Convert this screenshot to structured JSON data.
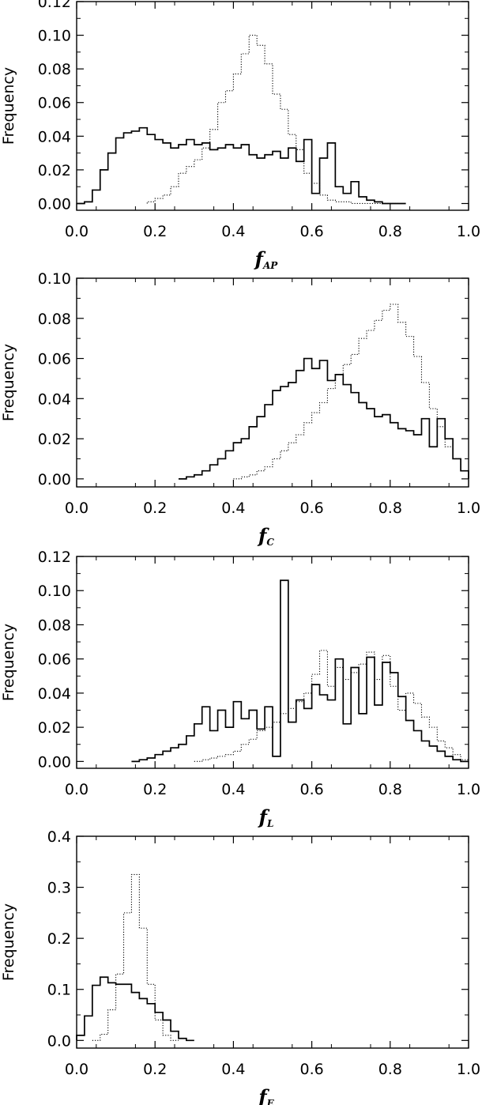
{
  "chart_data": [
    {
      "type": "histogram",
      "xlabel": "f",
      "xlabel_sub": "AP",
      "ylabel": "Frequency",
      "xlim": [
        0.0,
        1.0
      ],
      "ylim": [
        -0.004,
        0.12
      ],
      "xticks": [
        "0.0",
        "0.2",
        "0.4",
        "0.6",
        "0.8",
        "1.0"
      ],
      "yticks": [
        "0.00",
        "0.02",
        "0.04",
        "0.06",
        "0.08",
        "0.10",
        "0.12"
      ],
      "bin_width": 0.02,
      "series": [
        {
          "style": "solid",
          "bins_start": [
            0.0,
            0.02,
            0.04,
            0.06,
            0.08,
            0.1,
            0.12,
            0.14,
            0.16,
            0.18,
            0.2,
            0.22,
            0.24,
            0.26,
            0.28,
            0.3,
            0.32,
            0.34,
            0.36,
            0.38,
            0.4,
            0.42,
            0.44,
            0.46,
            0.48,
            0.5,
            0.52,
            0.54,
            0.56,
            0.58,
            0.6,
            0.62,
            0.64,
            0.66,
            0.68,
            0.7,
            0.72,
            0.74,
            0.76,
            0.78,
            0.8,
            0.82
          ],
          "values": [
            0.0,
            0.001,
            0.008,
            0.02,
            0.03,
            0.039,
            0.042,
            0.043,
            0.045,
            0.041,
            0.038,
            0.036,
            0.033,
            0.035,
            0.038,
            0.035,
            0.036,
            0.032,
            0.033,
            0.035,
            0.033,
            0.035,
            0.029,
            0.027,
            0.029,
            0.031,
            0.027,
            0.033,
            0.025,
            0.038,
            0.006,
            0.027,
            0.036,
            0.01,
            0.006,
            0.013,
            0.004,
            0.002,
            0.001,
            0.0,
            0.0,
            0.0
          ]
        },
        {
          "style": "dotted",
          "bins_start": [
            0.18,
            0.2,
            0.22,
            0.24,
            0.26,
            0.28,
            0.3,
            0.32,
            0.34,
            0.36,
            0.38,
            0.4,
            0.42,
            0.44,
            0.46,
            0.48,
            0.5,
            0.52,
            0.54,
            0.56,
            0.58,
            0.6,
            0.62,
            0.64,
            0.66,
            0.68,
            0.7,
            0.72,
            0.74,
            0.76,
            0.78,
            0.8
          ],
          "values": [
            0.001,
            0.003,
            0.005,
            0.01,
            0.018,
            0.022,
            0.026,
            0.033,
            0.044,
            0.06,
            0.067,
            0.077,
            0.089,
            0.1,
            0.094,
            0.083,
            0.065,
            0.056,
            0.041,
            0.032,
            0.018,
            0.012,
            0.005,
            0.002,
            0.001,
            0.001,
            0.0,
            0.0,
            0.0,
            0.0,
            0.0,
            0.0
          ]
        }
      ]
    },
    {
      "type": "histogram",
      "xlabel": "f",
      "xlabel_sub": "C",
      "ylabel": "Frequency",
      "xlim": [
        0.0,
        1.0
      ],
      "ylim": [
        -0.004,
        0.1
      ],
      "xticks": [
        "0.0",
        "0.2",
        "0.4",
        "0.6",
        "0.8",
        "1.0"
      ],
      "yticks": [
        "0.00",
        "0.02",
        "0.04",
        "0.06",
        "0.08",
        "0.10"
      ],
      "bin_width": 0.02,
      "series": [
        {
          "style": "solid",
          "bins_start": [
            0.26,
            0.28,
            0.3,
            0.32,
            0.34,
            0.36,
            0.38,
            0.4,
            0.42,
            0.44,
            0.46,
            0.48,
            0.5,
            0.52,
            0.54,
            0.56,
            0.58,
            0.6,
            0.62,
            0.64,
            0.66,
            0.68,
            0.7,
            0.72,
            0.74,
            0.76,
            0.78,
            0.8,
            0.82,
            0.84,
            0.86,
            0.88,
            0.9,
            0.92,
            0.94,
            0.96,
            0.98
          ],
          "values": [
            0.0,
            0.001,
            0.002,
            0.004,
            0.007,
            0.01,
            0.014,
            0.018,
            0.02,
            0.026,
            0.031,
            0.037,
            0.044,
            0.046,
            0.048,
            0.054,
            0.06,
            0.055,
            0.059,
            0.049,
            0.052,
            0.047,
            0.043,
            0.038,
            0.035,
            0.031,
            0.032,
            0.028,
            0.025,
            0.024,
            0.022,
            0.03,
            0.016,
            0.03,
            0.02,
            0.01,
            0.004
          ]
        },
        {
          "style": "dotted",
          "bins_start": [
            0.4,
            0.42,
            0.44,
            0.46,
            0.48,
            0.5,
            0.52,
            0.54,
            0.56,
            0.58,
            0.6,
            0.62,
            0.64,
            0.66,
            0.68,
            0.7,
            0.72,
            0.74,
            0.76,
            0.78,
            0.8,
            0.82,
            0.84,
            0.86,
            0.88,
            0.9,
            0.92,
            0.94,
            0.96,
            0.98
          ],
          "values": [
            0.0,
            0.001,
            0.002,
            0.004,
            0.006,
            0.01,
            0.014,
            0.018,
            0.022,
            0.028,
            0.033,
            0.038,
            0.045,
            0.052,
            0.057,
            0.062,
            0.07,
            0.074,
            0.079,
            0.084,
            0.087,
            0.078,
            0.071,
            0.061,
            0.048,
            0.035,
            0.026,
            0.016,
            0.01,
            0.004
          ]
        }
      ]
    },
    {
      "type": "histogram",
      "xlabel": "f",
      "xlabel_sub": "L",
      "ylabel": "Frequency",
      "xlim": [
        0.0,
        1.0
      ],
      "ylim": [
        -0.004,
        0.12
      ],
      "xticks": [
        "0.0",
        "0.2",
        "0.4",
        "0.6",
        "0.8",
        "1.0"
      ],
      "yticks": [
        "0.00",
        "0.02",
        "0.04",
        "0.06",
        "0.08",
        "0.10",
        "0.12"
      ],
      "bin_width": 0.02,
      "series": [
        {
          "style": "solid",
          "bins_start": [
            0.14,
            0.16,
            0.18,
            0.2,
            0.22,
            0.24,
            0.26,
            0.28,
            0.3,
            0.32,
            0.34,
            0.36,
            0.38,
            0.4,
            0.42,
            0.44,
            0.46,
            0.48,
            0.5,
            0.52,
            0.54,
            0.56,
            0.58,
            0.6,
            0.62,
            0.64,
            0.66,
            0.68,
            0.7,
            0.72,
            0.74,
            0.76,
            0.78,
            0.8,
            0.82,
            0.84,
            0.86,
            0.88,
            0.9,
            0.92,
            0.94,
            0.96,
            0.98
          ],
          "values": [
            0.0,
            0.001,
            0.002,
            0.004,
            0.006,
            0.008,
            0.01,
            0.015,
            0.022,
            0.032,
            0.018,
            0.03,
            0.02,
            0.035,
            0.025,
            0.03,
            0.019,
            0.032,
            0.003,
            0.106,
            0.023,
            0.036,
            0.031,
            0.045,
            0.039,
            0.036,
            0.06,
            0.022,
            0.055,
            0.028,
            0.061,
            0.033,
            0.058,
            0.052,
            0.038,
            0.024,
            0.018,
            0.012,
            0.009,
            0.006,
            0.003,
            0.001,
            0.0
          ]
        },
        {
          "style": "dotted",
          "bins_start": [
            0.3,
            0.32,
            0.34,
            0.36,
            0.38,
            0.4,
            0.42,
            0.44,
            0.46,
            0.48,
            0.5,
            0.52,
            0.54,
            0.56,
            0.58,
            0.6,
            0.62,
            0.64,
            0.66,
            0.68,
            0.7,
            0.72,
            0.74,
            0.76,
            0.78,
            0.8,
            0.82,
            0.84,
            0.86,
            0.88,
            0.9,
            0.92,
            0.94,
            0.96,
            0.98
          ],
          "values": [
            0.0,
            0.001,
            0.002,
            0.003,
            0.004,
            0.006,
            0.01,
            0.013,
            0.018,
            0.02,
            0.023,
            0.028,
            0.031,
            0.035,
            0.04,
            0.051,
            0.065,
            0.044,
            0.055,
            0.048,
            0.052,
            0.057,
            0.064,
            0.048,
            0.062,
            0.044,
            0.03,
            0.04,
            0.034,
            0.026,
            0.02,
            0.012,
            0.008,
            0.004,
            0.001
          ]
        }
      ]
    },
    {
      "type": "histogram",
      "xlabel": "f",
      "xlabel_sub": "E",
      "ylabel": "Frequency",
      "xlim": [
        0.0,
        1.0
      ],
      "ylim": [
        -0.015,
        0.4
      ],
      "xticks": [
        "0.0",
        "0.2",
        "0.4",
        "0.6",
        "0.8",
        "1.0"
      ],
      "yticks": [
        "0.0",
        "0.1",
        "0.2",
        "0.3",
        "0.4"
      ],
      "bin_width": 0.02,
      "series": [
        {
          "style": "solid",
          "bins_start": [
            0.0,
            0.02,
            0.04,
            0.06,
            0.08,
            0.1,
            0.12,
            0.14,
            0.16,
            0.18,
            0.2,
            0.22,
            0.24,
            0.26,
            0.28
          ],
          "values": [
            0.01,
            0.048,
            0.108,
            0.124,
            0.113,
            0.11,
            0.11,
            0.094,
            0.082,
            0.072,
            0.055,
            0.04,
            0.018,
            0.004,
            0.0
          ]
        },
        {
          "style": "dotted",
          "bins_start": [
            0.04,
            0.06,
            0.08,
            0.1,
            0.12,
            0.14,
            0.16,
            0.18,
            0.2,
            0.22,
            0.24
          ],
          "values": [
            0.0,
            0.012,
            0.06,
            0.13,
            0.25,
            0.325,
            0.22,
            0.11,
            0.04,
            0.01,
            0.0
          ]
        }
      ]
    }
  ]
}
